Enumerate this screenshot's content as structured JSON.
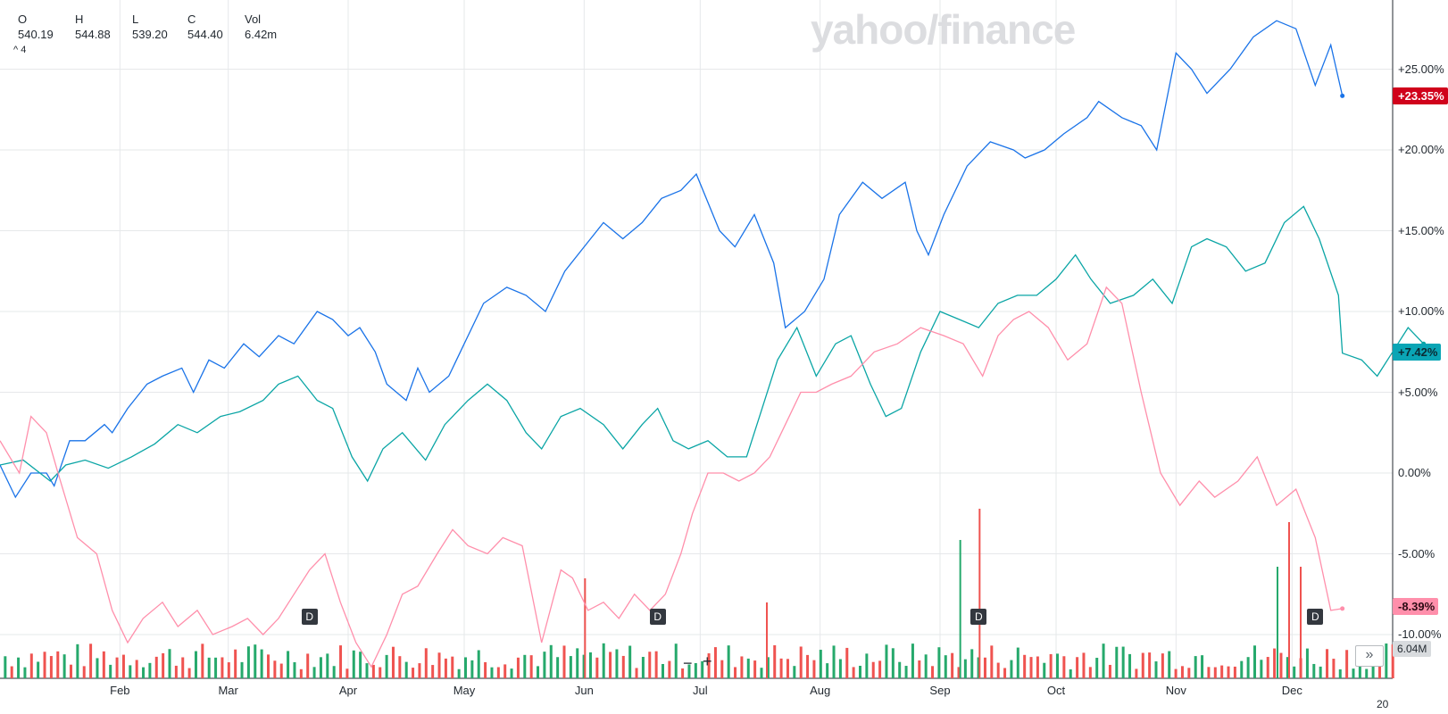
{
  "watermark": "yahoo/finance",
  "ohlc": {
    "labels": [
      "O",
      "H",
      "L",
      "C",
      "Vol"
    ],
    "values": [
      "540.19",
      "544.88",
      "539.20",
      "544.40",
      "6.42m"
    ],
    "indicator": "^ 4"
  },
  "year_label": "20",
  "colors": {
    "series_blue": "#1a73e8",
    "series_teal": "#0aa5a5",
    "series_pink": "#ff8fab",
    "badge_blue": "#ff0000",
    "volume_up": "#26a96c",
    "volume_down": "#ef5350",
    "grid": "#e6e8ea"
  },
  "badges": [
    {
      "text": "+23.35%",
      "bg": "#d0021b",
      "fg": "#ffffff"
    },
    {
      "text": "+7.42%",
      "bg": "#0aa5b5",
      "fg": "#0b2a33"
    },
    {
      "text": "-8.39%",
      "bg": "#ff8fab",
      "fg": "#2b0b14"
    }
  ],
  "volume_label": "6.04M",
  "dividend_marker": "D",
  "controls": {
    "zoom_out": "−",
    "zoom_in": "+",
    "scroll": "»"
  },
  "chart_data": {
    "type": "line",
    "title": "",
    "y_axis": {
      "ticks": [
        "+25.00%",
        "+20.00%",
        "+15.00%",
        "+10.00%",
        "+5.00%",
        "0.00%",
        "-5.00%",
        "-10.00%"
      ],
      "tick_values": [
        25,
        20,
        15,
        10,
        5,
        0,
        -5,
        -10
      ],
      "range": [
        -12.5,
        29
      ],
      "unit": "%"
    },
    "x_axis": {
      "ticks": [
        "Feb",
        "Mar",
        "Apr",
        "May",
        "Jun",
        "Jul",
        "Aug",
        "Sep",
        "Oct",
        "Nov",
        "Dec"
      ],
      "tick_positions": [
        31,
        59,
        90,
        120,
        151,
        181,
        212,
        243,
        273,
        304,
        334
      ],
      "range": [
        0,
        347
      ],
      "unit": "day of year"
    },
    "grid": true,
    "series": [
      {
        "color": "#1a73e8",
        "points": [
          [
            0,
            0.5
          ],
          [
            4,
            -1.5
          ],
          [
            8,
            0
          ],
          [
            12,
            0
          ],
          [
            14,
            -0.8
          ],
          [
            18,
            2
          ],
          [
            22,
            2
          ],
          [
            27,
            3
          ],
          [
            29,
            2.5
          ],
          [
            33,
            4
          ],
          [
            38,
            5.5
          ],
          [
            42,
            6
          ],
          [
            47,
            6.5
          ],
          [
            50,
            5
          ],
          [
            54,
            7
          ],
          [
            58,
            6.5
          ],
          [
            63,
            8
          ],
          [
            67,
            7.2
          ],
          [
            72,
            8.5
          ],
          [
            76,
            8
          ],
          [
            82,
            10
          ],
          [
            86,
            9.5
          ],
          [
            90,
            8.5
          ],
          [
            93,
            9
          ],
          [
            97,
            7.5
          ],
          [
            100,
            5.5
          ],
          [
            105,
            4.5
          ],
          [
            108,
            6.5
          ],
          [
            111,
            5
          ],
          [
            116,
            6
          ],
          [
            120,
            8
          ],
          [
            125,
            10.5
          ],
          [
            131,
            11.5
          ],
          [
            136,
            11
          ],
          [
            141,
            10
          ],
          [
            146,
            12.5
          ],
          [
            151,
            14
          ],
          [
            156,
            15.5
          ],
          [
            161,
            14.5
          ],
          [
            166,
            15.5
          ],
          [
            171,
            17
          ],
          [
            176,
            17.5
          ],
          [
            180,
            18.5
          ],
          [
            186,
            15
          ],
          [
            190,
            14
          ],
          [
            195,
            16
          ],
          [
            200,
            13
          ],
          [
            203,
            9
          ],
          [
            208,
            10
          ],
          [
            213,
            12
          ],
          [
            217,
            16
          ],
          [
            223,
            18
          ],
          [
            228,
            17
          ],
          [
            234,
            18
          ],
          [
            237,
            15
          ],
          [
            240,
            13.5
          ],
          [
            244,
            16
          ],
          [
            250,
            19
          ],
          [
            256,
            20.5
          ],
          [
            262,
            20
          ],
          [
            265,
            19.5
          ],
          [
            270,
            20
          ],
          [
            275,
            21
          ],
          [
            281,
            22
          ],
          [
            284,
            23
          ],
          [
            290,
            22
          ],
          [
            295,
            21.5
          ],
          [
            299,
            20
          ],
          [
            304,
            26
          ],
          [
            308,
            25
          ],
          [
            312,
            23.5
          ],
          [
            318,
            25
          ],
          [
            324,
            27
          ],
          [
            330,
            28
          ],
          [
            335,
            27.5
          ],
          [
            340,
            24
          ],
          [
            344,
            26.5
          ],
          [
            347,
            23.35
          ]
        ]
      },
      {
        "color": "#0aa5a5",
        "points": [
          [
            0,
            0.5
          ],
          [
            6,
            0.8
          ],
          [
            13,
            -0.5
          ],
          [
            17,
            0.5
          ],
          [
            22,
            0.8
          ],
          [
            28,
            0.3
          ],
          [
            34,
            1
          ],
          [
            40,
            1.8
          ],
          [
            46,
            3
          ],
          [
            51,
            2.5
          ],
          [
            57,
            3.5
          ],
          [
            62,
            3.8
          ],
          [
            68,
            4.5
          ],
          [
            72,
            5.5
          ],
          [
            77,
            6
          ],
          [
            82,
            4.5
          ],
          [
            86,
            4
          ],
          [
            91,
            1
          ],
          [
            95,
            -0.5
          ],
          [
            99,
            1.5
          ],
          [
            104,
            2.5
          ],
          [
            110,
            0.8
          ],
          [
            115,
            3
          ],
          [
            121,
            4.5
          ],
          [
            126,
            5.5
          ],
          [
            131,
            4.5
          ],
          [
            136,
            2.5
          ],
          [
            140,
            1.5
          ],
          [
            145,
            3.5
          ],
          [
            150,
            4
          ],
          [
            156,
            3
          ],
          [
            161,
            1.5
          ],
          [
            166,
            3
          ],
          [
            170,
            4
          ],
          [
            174,
            2
          ],
          [
            178,
            1.5
          ],
          [
            183,
            2
          ],
          [
            188,
            1
          ],
          [
            193,
            1
          ],
          [
            197,
            4
          ],
          [
            201,
            7
          ],
          [
            206,
            9
          ],
          [
            211,
            6
          ],
          [
            216,
            8
          ],
          [
            220,
            8.5
          ],
          [
            225,
            5.5
          ],
          [
            229,
            3.5
          ],
          [
            233,
            4
          ],
          [
            238,
            7.5
          ],
          [
            243,
            10
          ],
          [
            248,
            9.5
          ],
          [
            253,
            9
          ],
          [
            258,
            10.5
          ],
          [
            263,
            11
          ],
          [
            268,
            11
          ],
          [
            273,
            12
          ],
          [
            278,
            13.5
          ],
          [
            282,
            12
          ],
          [
            287,
            10.5
          ],
          [
            293,
            11
          ],
          [
            298,
            12
          ],
          [
            303,
            10.5
          ],
          [
            308,
            14
          ],
          [
            312,
            14.5
          ],
          [
            317,
            14
          ],
          [
            322,
            12.5
          ],
          [
            327,
            13
          ],
          [
            332,
            15.5
          ],
          [
            337,
            16.5
          ],
          [
            341,
            14.5
          ],
          [
            346,
            11
          ],
          [
            352,
            7
          ],
          [
            356,
            6
          ],
          [
            360,
            7.5
          ],
          [
            364,
            9
          ],
          [
            368,
            8
          ],
          [
            347,
            7.42
          ]
        ]
      },
      {
        "color": "#ff8fab",
        "points": [
          [
            0,
            2
          ],
          [
            5,
            0
          ],
          [
            8,
            3.5
          ],
          [
            12,
            2.5
          ],
          [
            15,
            0
          ],
          [
            20,
            -4
          ],
          [
            25,
            -5
          ],
          [
            29,
            -8.5
          ],
          [
            33,
            -10.5
          ],
          [
            37,
            -9
          ],
          [
            42,
            -8
          ],
          [
            46,
            -9.5
          ],
          [
            51,
            -8.5
          ],
          [
            55,
            -10
          ],
          [
            60,
            -9.5
          ],
          [
            64,
            -9
          ],
          [
            68,
            -10
          ],
          [
            72,
            -9
          ],
          [
            76,
            -7.5
          ],
          [
            80,
            -6
          ],
          [
            84,
            -5
          ],
          [
            88,
            -8
          ],
          [
            92,
            -10.5
          ],
          [
            96,
            -12
          ],
          [
            100,
            -10
          ],
          [
            104,
            -7.5
          ],
          [
            108,
            -7
          ],
          [
            113,
            -5
          ],
          [
            117,
            -3.5
          ],
          [
            121,
            -4.5
          ],
          [
            126,
            -5
          ],
          [
            130,
            -4
          ],
          [
            135,
            -4.5
          ],
          [
            140,
            -10.5
          ],
          [
            145,
            -6
          ],
          [
            148,
            -6.5
          ],
          [
            152,
            -8.5
          ],
          [
            156,
            -8
          ],
          [
            160,
            -9
          ],
          [
            164,
            -7.5
          ],
          [
            168,
            -8.5
          ],
          [
            172,
            -7.5
          ],
          [
            176,
            -5
          ],
          [
            179,
            -2.5
          ],
          [
            183,
            0
          ],
          [
            187,
            0
          ],
          [
            191,
            -0.5
          ],
          [
            195,
            0
          ],
          [
            199,
            1
          ],
          [
            203,
            3
          ],
          [
            207,
            5
          ],
          [
            211,
            5
          ],
          [
            215,
            5.5
          ],
          [
            220,
            6
          ],
          [
            226,
            7.5
          ],
          [
            232,
            8
          ],
          [
            238,
            9
          ],
          [
            244,
            8.5
          ],
          [
            249,
            8
          ],
          [
            254,
            6
          ],
          [
            258,
            8.5
          ],
          [
            262,
            9.5
          ],
          [
            266,
            10
          ],
          [
            271,
            9
          ],
          [
            276,
            7
          ],
          [
            281,
            8
          ],
          [
            286,
            11.5
          ],
          [
            290,
            10.5
          ],
          [
            295,
            5
          ],
          [
            300,
            0
          ],
          [
            305,
            -2
          ],
          [
            310,
            -0.5
          ],
          [
            314,
            -1.5
          ],
          [
            320,
            -0.5
          ],
          [
            325,
            1
          ],
          [
            330,
            -2
          ],
          [
            335,
            -1
          ],
          [
            340,
            -4
          ],
          [
            344,
            -8.5
          ],
          [
            347,
            -8.39
          ]
        ]
      }
    ],
    "volume": {
      "tall_bars": [
        [
          151,
          "red"
        ],
        [
          248,
          "green"
        ],
        [
          253,
          "red"
        ],
        [
          330,
          "green"
        ],
        [
          333,
          "red"
        ],
        [
          198,
          "red"
        ],
        [
          336,
          "red"
        ]
      ]
    },
    "dividend_markers": [
      80,
      170,
      253,
      340
    ]
  }
}
